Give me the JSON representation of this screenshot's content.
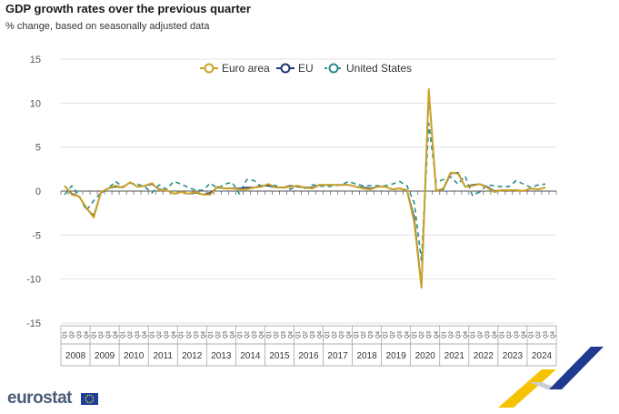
{
  "chart_data": {
    "type": "line",
    "title": "GDP growth rates over the previous quarter",
    "subtitle": "% change, based on seasonally adjusted data",
    "ylim": [
      -15,
      15
    ],
    "yticks": [
      15,
      10,
      5,
      0,
      -5,
      -10,
      -15
    ],
    "grid": true,
    "legend_position": "top",
    "quarter_labels": [
      "Q1",
      "Q2",
      "Q3",
      "Q4"
    ],
    "years": [
      "2008",
      "2009",
      "2010",
      "2011",
      "2012",
      "2013",
      "2014",
      "2015",
      "2016",
      "2017",
      "2018",
      "2019",
      "2020",
      "2021",
      "2022",
      "2023",
      "2024"
    ],
    "series": [
      {
        "name": "Euro area",
        "color": "#c9a227",
        "dash": "solid",
        "values": [
          0.6,
          -0.4,
          -0.6,
          -1.9,
          -3.0,
          -0.1,
          0.3,
          0.6,
          0.4,
          1.0,
          0.5,
          0.6,
          0.9,
          0.1,
          0.1,
          -0.3,
          -0.1,
          -0.3,
          -0.1,
          -0.4,
          -0.4,
          0.5,
          0.3,
          0.3,
          0.2,
          0.2,
          0.4,
          0.5,
          0.8,
          0.4,
          0.4,
          0.5,
          0.6,
          0.4,
          0.3,
          0.7,
          0.7,
          0.7,
          0.7,
          0.7,
          0.5,
          0.3,
          0.2,
          0.5,
          0.5,
          0.2,
          0.3,
          0.1,
          -3.5,
          -11.0,
          11.6,
          0.0,
          0.3,
          2.1,
          2.0,
          0.5,
          0.6,
          0.8,
          0.4,
          -0.1,
          0.1,
          0.1,
          0.1,
          0.0,
          0.3,
          0.2,
          0.4
        ]
      },
      {
        "name": "EU",
        "color": "#1f3a6e",
        "dash": "solid",
        "values": [
          0.6,
          -0.3,
          -0.6,
          -2.0,
          -2.8,
          -0.2,
          0.3,
          0.5,
          0.4,
          1.0,
          0.5,
          0.6,
          0.8,
          0.2,
          0.1,
          -0.3,
          -0.1,
          -0.3,
          -0.2,
          -0.4,
          -0.2,
          0.4,
          0.3,
          0.3,
          0.3,
          0.4,
          0.4,
          0.6,
          0.6,
          0.4,
          0.4,
          0.6,
          0.5,
          0.4,
          0.4,
          0.7,
          0.7,
          0.7,
          0.7,
          0.7,
          0.5,
          0.4,
          0.3,
          0.5,
          0.5,
          0.2,
          0.3,
          0.1,
          -3.0,
          -10.8,
          11.3,
          0.1,
          0.2,
          2.0,
          2.1,
          0.5,
          0.7,
          0.8,
          0.5,
          0.0,
          0.1,
          0.1,
          0.1,
          0.0,
          0.3,
          0.2,
          0.4
        ]
      },
      {
        "name": "United States",
        "color": "#2e8b8b",
        "dash": "dashed",
        "values": [
          -0.4,
          0.6,
          -0.5,
          -2.2,
          -1.1,
          -0.2,
          0.3,
          1.1,
          0.5,
          0.9,
          0.8,
          0.5,
          -0.2,
          0.7,
          0.2,
          1.1,
          0.8,
          0.4,
          0.1,
          0.1,
          0.9,
          0.3,
          0.8,
          1.0,
          -0.3,
          1.3,
          1.2,
          0.5,
          0.8,
          0.6,
          0.4,
          0.2,
          0.6,
          0.3,
          0.7,
          0.6,
          0.5,
          0.6,
          0.7,
          1.1,
          0.8,
          0.6,
          0.6,
          0.6,
          0.6,
          0.8,
          1.1,
          0.6,
          -1.3,
          -7.9,
          7.7,
          1.0,
          1.3,
          1.6,
          0.8,
          1.7,
          -0.5,
          -0.1,
          0.7,
          0.6,
          0.5,
          0.5,
          1.2,
          0.8,
          0.4,
          0.7,
          0.8
        ]
      }
    ]
  },
  "brand": {
    "name": "eurostat"
  },
  "colors": {
    "flag": "#1b3f9a",
    "flag_stars": "#ffdd00",
    "accent_yellow": "#f6c200",
    "accent_navy": "#1f3a8f"
  }
}
